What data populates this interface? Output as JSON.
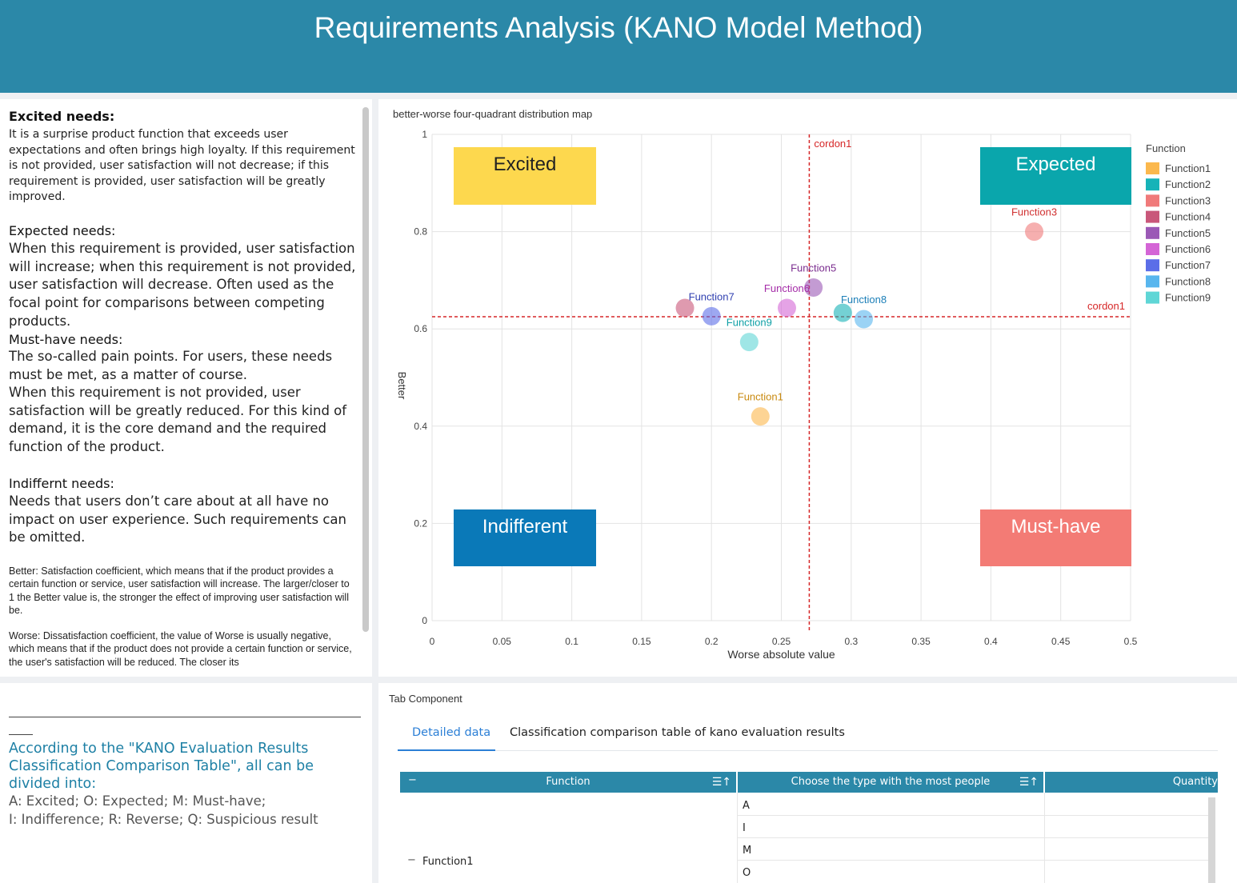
{
  "header": {
    "title": "Requirements Analysis (KANO Model Method)"
  },
  "left_panel": {
    "excited_heading": "Excited needs:",
    "excited_text": "It is a surprise product function that exceeds user expectations and often brings high loyalty. If this requirement is not provided, user satisfaction will not decrease; if this requirement is provided, user satisfaction will be greatly improved.",
    "expected_heading": "Expected needs:",
    "expected_text": "When this requirement is provided, user satisfaction will increase; when this requirement is not provided, user satisfaction will decrease. Often used as the focal point for comparisons between competing products.",
    "musthave_heading": "Must-have needs:",
    "musthave_text1": "The so-called pain points. For users, these needs must be met, as a matter of course.",
    "musthave_text2": "When this requirement is not provided, user satisfaction will be greatly reduced. For this kind of demand, it is the core demand and the required function of the product.",
    "indifferent_heading": "Indiffernt needs:",
    "indifferent_text": "Needs that users don’t care about at all have no impact on user experience. Such requirements can be omitted.",
    "better_note": "Better: Satisfaction coefficient, which means that if the product provides a certain function or service, user satisfaction will increase. The larger/closer to 1 the Better value is, the stronger the effect of improving user satisfaction will be.",
    "worse_note": "Worse: Dissatisfaction coefficient, the value of Worse is usually negative, which means that if the product does not provide a certain function or service, the user's satisfaction will be reduced. The closer its"
  },
  "bottom_left": {
    "title": "According to the \"KANO Evaluation Results Classification Comparison Table\", all can be divided into:",
    "line1": "A: Excited; O: Expected; M: Must-have;",
    "line2": "I: Indifference; R: Reverse; Q: Suspicious result"
  },
  "chart_data": {
    "type": "scatter",
    "title": "better-worse four-quadrant distribution map",
    "xlabel": "Worse absolute value",
    "ylabel": "Better",
    "xlim": [
      0,
      0.5
    ],
    "ylim": [
      0,
      1
    ],
    "x_ticks": [
      "0",
      "0.05",
      "0.1",
      "0.15",
      "0.2",
      "0.25",
      "0.3",
      "0.35",
      "0.4",
      "0.45",
      "0.5"
    ],
    "y_ticks": [
      "0",
      "0.2",
      "0.4",
      "0.6",
      "0.8",
      "1"
    ],
    "grid": true,
    "legend_title": "Function",
    "legend_position": "right",
    "cordon_x": {
      "label": "cordon1",
      "value": 0.27,
      "color": "#d62728"
    },
    "cordon_y": {
      "label": "cordon1",
      "value": 0.625,
      "color": "#d62728"
    },
    "quadrants": [
      {
        "label": "Excited",
        "color": "#fdd84e",
        "text_color": "#222222",
        "position": "top-left"
      },
      {
        "label": "Expected",
        "color": "#0aa6ac",
        "text_color": "#ffffff",
        "position": "top-right"
      },
      {
        "label": "Indifferent",
        "color": "#0a79b8",
        "text_color": "#ffffff",
        "position": "bottom-left"
      },
      {
        "label": "Must-have",
        "color": "#f37b75",
        "text_color": "#ffffff",
        "position": "bottom-right"
      }
    ],
    "series": [
      {
        "name": "Function1",
        "color": "#fbb84d",
        "x": 0.235,
        "y": 0.42,
        "label_shown": true
      },
      {
        "name": "Function2",
        "color": "#17b3b8",
        "x": 0.294,
        "y": 0.633,
        "label_shown": false
      },
      {
        "name": "Function3",
        "color": "#f07a7a",
        "x": 0.431,
        "y": 0.8,
        "label_shown": true
      },
      {
        "name": "Function4",
        "color": "#c9577a",
        "x": 0.181,
        "y": 0.643,
        "label_shown": false
      },
      {
        "name": "Function5",
        "color": "#9b59b6",
        "x": 0.273,
        "y": 0.685,
        "label_shown": true
      },
      {
        "name": "Function6",
        "color": "#d465d6",
        "x": 0.254,
        "y": 0.643,
        "label_shown": true
      },
      {
        "name": "Function7",
        "color": "#5b6ee8",
        "x": 0.2,
        "y": 0.626,
        "label_shown": true
      },
      {
        "name": "Function8",
        "color": "#58b6ee",
        "x": 0.309,
        "y": 0.62,
        "label_shown": true
      },
      {
        "name": "Function9",
        "color": "#5fd6d6",
        "x": 0.227,
        "y": 0.573,
        "label_shown": true
      }
    ]
  },
  "tabs": {
    "component_label": "Tab Component",
    "detailed": "Detailed data",
    "classification": "Classification comparison table of kano evaluation results"
  },
  "table": {
    "collapse_symbol": "−",
    "sort_symbol": "☰↑",
    "headers": [
      "Function",
      "Choose the type with the most people",
      "Quantity"
    ],
    "group_label": "Function1",
    "types": [
      "A",
      "I",
      "M",
      "O"
    ]
  }
}
